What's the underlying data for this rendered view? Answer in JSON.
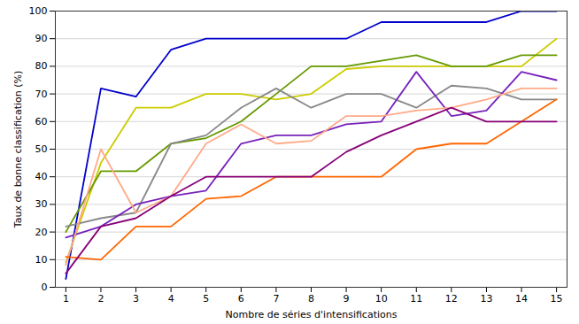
{
  "chart_data": {
    "type": "line",
    "x": [
      1,
      2,
      3,
      4,
      5,
      6,
      7,
      8,
      9,
      10,
      11,
      12,
      13,
      14,
      15
    ],
    "series": [
      {
        "color": "#0000cc",
        "values": [
          3,
          72,
          69,
          86,
          90,
          90,
          90,
          90,
          90,
          96,
          96,
          96,
          96,
          100,
          100
        ]
      },
      {
        "color": "#cccc00",
        "values": [
          9,
          45,
          65,
          65,
          70,
          70,
          68,
          70,
          79,
          80,
          80,
          80,
          80,
          80,
          90
        ]
      },
      {
        "color": "#669900",
        "values": [
          20,
          42,
          42,
          52,
          54,
          60,
          70,
          80,
          80,
          82,
          84,
          80,
          80,
          84,
          84
        ]
      },
      {
        "color": "#888888",
        "values": [
          22,
          25,
          27,
          52,
          55,
          65,
          72,
          65,
          70,
          70,
          65,
          73,
          72,
          68,
          68
        ]
      },
      {
        "color": "#7722bb",
        "values": [
          18,
          22,
          30,
          33,
          35,
          52,
          55,
          55,
          59,
          60,
          78,
          62,
          64,
          78,
          75
        ]
      },
      {
        "color": "#ffaa88",
        "values": [
          8,
          50,
          27,
          33,
          52,
          59,
          52,
          53,
          62,
          62,
          64,
          65,
          68,
          72,
          72
        ]
      },
      {
        "color": "#ff6600",
        "values": [
          11,
          10,
          22,
          22,
          32,
          33,
          40,
          40,
          40,
          40,
          50,
          52,
          52,
          60,
          68
        ]
      },
      {
        "color": "#880077",
        "values": [
          5,
          22,
          25,
          33,
          40,
          40,
          40,
          40,
          49,
          55,
          60,
          65,
          60,
          60,
          60
        ]
      }
    ],
    "xlabel": "Nombre de séries d'intensifications",
    "ylabel": "Taux de bonne classification (%)",
    "xlim": [
      0.7,
      15.3
    ],
    "ylim": [
      0,
      100
    ],
    "xticks": [
      1,
      2,
      3,
      4,
      5,
      6,
      7,
      8,
      9,
      10,
      11,
      12,
      13,
      14,
      15
    ],
    "yticks": [
      0,
      10,
      20,
      30,
      40,
      50,
      60,
      70,
      80,
      90,
      100
    ],
    "grid": "y"
  }
}
